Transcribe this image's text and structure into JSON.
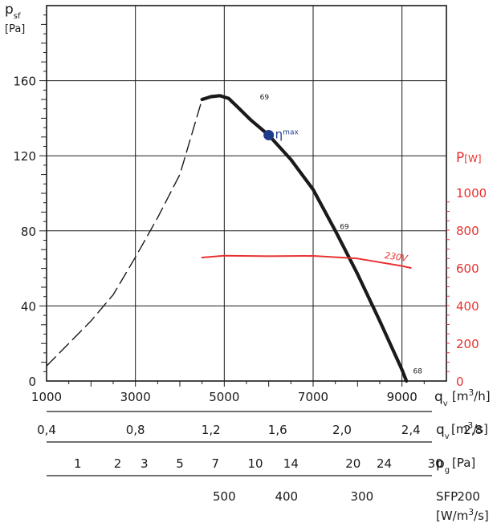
{
  "chart_data": {
    "type": "line",
    "x_axis": {
      "ticks": [
        "1000",
        "3000",
        "5000",
        "7000",
        "9000"
      ],
      "unit": "[m³/h]",
      "symbol": "q",
      "symbol_sub": "v",
      "range": [
        1000,
        10000
      ],
      "grid": true
    },
    "y_axis": {
      "symbol": "p",
      "symbol_sub": "sf",
      "unit": "[Pa]",
      "ticks": [
        "0",
        "40",
        "80",
        "120",
        "160"
      ],
      "range": [
        0,
        200
      ],
      "grid": true
    },
    "y2_axis": {
      "title": "P",
      "unit": "[W]",
      "ticks": [
        "0",
        "200",
        "400",
        "600",
        "800",
        "1000"
      ],
      "range": [
        0,
        1000
      ],
      "color": "#e8312f"
    },
    "series": [
      {
        "kind": "pressure-stall",
        "style": "dashed",
        "color": "#1a1a1a",
        "points": [
          [
            1000,
            8
          ],
          [
            1500,
            20
          ],
          [
            2000,
            32
          ],
          [
            2500,
            46
          ],
          [
            3000,
            66
          ],
          [
            3500,
            87
          ],
          [
            4000,
            110
          ],
          [
            4500,
            150
          ]
        ]
      },
      {
        "kind": "pressure",
        "style": "solid",
        "color": "#1a1a1a",
        "points": [
          [
            4500,
            150
          ],
          [
            4700,
            151.5
          ],
          [
            4900,
            152
          ],
          [
            5100,
            150.5
          ],
          [
            5300,
            146
          ],
          [
            5600,
            139
          ],
          [
            6000,
            131
          ],
          [
            6500,
            118
          ],
          [
            7000,
            102
          ],
          [
            7500,
            80
          ],
          [
            8000,
            57
          ],
          [
            8500,
            32
          ],
          [
            9000,
            6
          ],
          [
            9100,
            0
          ]
        ]
      },
      {
        "name": "230V",
        "kind": "power",
        "style": "solid",
        "color": "#e8312f",
        "points": [
          [
            4500,
            655
          ],
          [
            5000,
            665
          ],
          [
            6000,
            662
          ],
          [
            7000,
            664
          ],
          [
            8000,
            650
          ],
          [
            9000,
            610
          ],
          [
            9200,
            600
          ]
        ]
      }
    ],
    "annotations": [
      {
        "text": "69",
        "x": 5800,
        "y": 150
      },
      {
        "text": "69",
        "x": 7600,
        "y": 81
      },
      {
        "text": "68",
        "x": 9250,
        "y": 4
      },
      {
        "text": "230V",
        "x": 8600,
        "y": 65
      }
    ],
    "eta_max": {
      "x": 6000,
      "y": 131,
      "symbol": "η",
      "sub": "max",
      "color": "#1e3c8c"
    },
    "scales": [
      {
        "ticks": [
          {
            "label": "0,4",
            "x": 1000
          },
          {
            "label": "0,8",
            "x": 3000
          },
          {
            "label": "1,2",
            "x": 4700
          },
          {
            "label": "1,6",
            "x": 6200
          },
          {
            "label": "2,0",
            "x": 7650
          },
          {
            "label": "2,4",
            "x": 9200
          },
          {
            "label": "2,8",
            "x": 10600
          }
        ],
        "symbol": "q",
        "symbol_sub": "v",
        "unit": "[m³/s]"
      },
      {
        "ticks": [
          {
            "label": "1",
            "x": 1700
          },
          {
            "label": "2",
            "x": 2600
          },
          {
            "label": "3",
            "x": 3200
          },
          {
            "label": "5",
            "x": 4000
          },
          {
            "label": "7",
            "x": 4800
          },
          {
            "label": "10",
            "x": 5700
          },
          {
            "label": "14",
            "x": 6500
          },
          {
            "label": "20",
            "x": 7900
          },
          {
            "label": "24",
            "x": 8600
          },
          {
            "label": "30",
            "x": 9750
          }
        ],
        "symbol": "p",
        "symbol_sub": "g",
        "unit": "[Pa]"
      },
      {
        "ticks": [
          {
            "label": "500",
            "x": 5000
          },
          {
            "label": "400",
            "x": 6400
          },
          {
            "label": "300",
            "x": 8100
          },
          {
            "label": "200",
            "x": 10500
          }
        ],
        "symbol": "SFP",
        "unit": "[W/m³/s]"
      }
    ]
  }
}
